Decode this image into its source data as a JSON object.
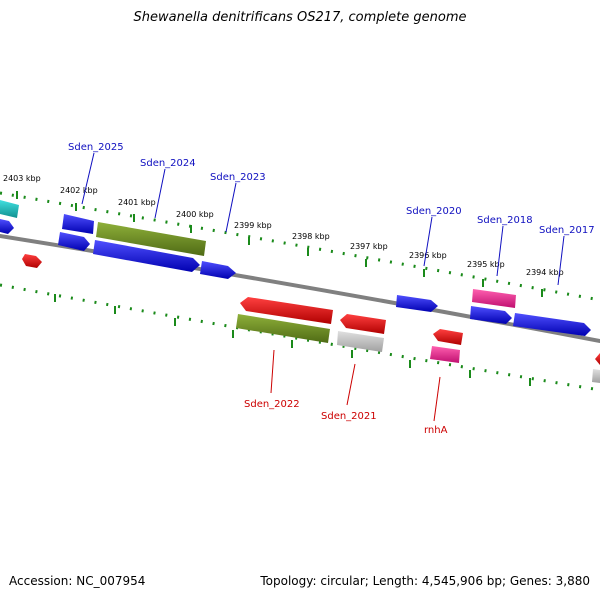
{
  "title": "Shewanella denitrificans OS217, complete genome",
  "accession_label": "Accession: NC_007954",
  "topology_label": "Topology: circular; Length: 4,545,906 bp; Genes: 3,880",
  "colors": {
    "blue": "#1010e0",
    "olive": "#6b8e23",
    "red": "#ee0000",
    "pink": "#ee1493",
    "gray": "#c0c0c0",
    "cyan": "#10c8c8",
    "label_top": "#1010c0",
    "label_bottom": "#cc0000",
    "tick": "#1a8a1a",
    "backbone": "#808080"
  },
  "kbp_labels": [
    "2403 kbp",
    "2402 kbp",
    "2401 kbp",
    "2400 kbp",
    "2399 kbp",
    "2398 kbp",
    "2397 kbp",
    "2396 kbp",
    "2395 kbp",
    "2394 kbp"
  ],
  "genes_top": [
    "Sden_2025",
    "Sden_2024",
    "Sden_2023",
    "Sden_2020",
    "Sden_2018",
    "Sden_2017"
  ],
  "genes_bottom": [
    "Sden_2022",
    "Sden_2021",
    "rnhA"
  ]
}
